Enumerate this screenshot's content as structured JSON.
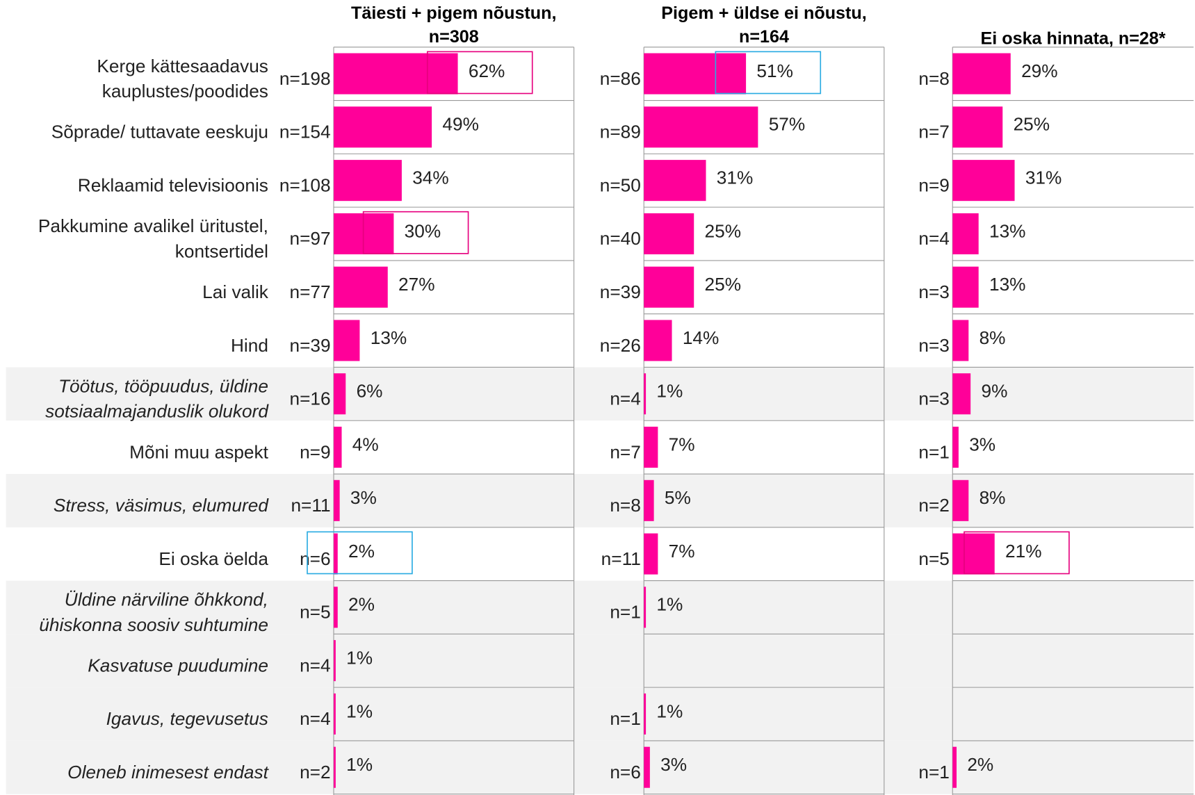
{
  "chart_data": {
    "type": "bar",
    "orientation": "horizontal",
    "categories": [
      "Kerge kättesaadavus\nkauplustes/poodides",
      "Sõprade/ tuttavate eeskuju",
      "Reklaamid televisioonis",
      "Pakkumine avalikel üritustel,\nkontsertidel",
      "Lai valik",
      "Hind",
      "Töötus, tööpuudus, üldine\nsotsiaalmajanduslik olukord",
      "Mõni muu aspekt",
      "Stress, väsimus, elumured",
      "Ei oska öelda",
      "Üldine närviline õhkkond,\nühiskonna soosiv suhtumine",
      "Kasvatuse puudumine",
      "Igavus, tegevusetus",
      "Oleneb inimesest endast"
    ],
    "category_style": [
      "normal",
      "normal",
      "normal",
      "normal",
      "normal",
      "normal",
      "italic",
      "normal",
      "italic",
      "normal",
      "italic",
      "italic",
      "italic",
      "italic"
    ],
    "xlim": [
      0,
      120
    ],
    "series": [
      {
        "name": "Täiesti + pigem nõustun,\nn=308",
        "color": "#ff0099",
        "values": [
          62,
          49,
          34,
          30,
          27,
          13,
          6,
          4,
          3,
          2,
          2,
          1,
          1,
          1
        ],
        "value_labels": [
          "62%",
          "49%",
          "34%",
          "30%",
          "27%",
          "13%",
          "6%",
          "4%",
          "3%",
          "2%",
          "2%",
          "1%",
          "1%",
          "1%"
        ],
        "count_labels": [
          "n=198",
          "n=154",
          "n=108",
          "n=97",
          "n=77",
          "n=39",
          "n=16",
          "n=9",
          "n=11",
          "n=6",
          "n=5",
          "n=4",
          "n=4",
          "n=2"
        ],
        "outline": [
          "#e6007e",
          null,
          null,
          "#e6007e",
          null,
          null,
          null,
          null,
          null,
          "#29abe2",
          null,
          null,
          null,
          null
        ]
      },
      {
        "name": "Pigem + üldse ei nõustu,\nn=164",
        "color": "#ff0099",
        "values": [
          51,
          57,
          31,
          25,
          25,
          14,
          1,
          7,
          5,
          7,
          1,
          null,
          1,
          3
        ],
        "value_labels": [
          "51%",
          "57%",
          "31%",
          "25%",
          "25%",
          "14%",
          "1%",
          "7%",
          "5%",
          "7%",
          "1%",
          null,
          "1%",
          "3%"
        ],
        "count_labels": [
          "n=86",
          "n=89",
          "n=50",
          "n=40",
          "n=39",
          "n=26",
          "n=4",
          "n=7",
          "n=8",
          "n=11",
          "n=1",
          null,
          "n=1",
          "n=6"
        ],
        "outline": [
          "#29abe2",
          null,
          null,
          null,
          null,
          null,
          null,
          null,
          null,
          null,
          null,
          null,
          null,
          null
        ]
      },
      {
        "name": "Ei oska hinnata, n=28*",
        "color": "#ff0099",
        "values": [
          29,
          25,
          31,
          13,
          13,
          8,
          9,
          3,
          8,
          21,
          null,
          null,
          null,
          2
        ],
        "value_labels": [
          "29%",
          "25%",
          "31%",
          "13%",
          "13%",
          "8%",
          "9%",
          "3%",
          "8%",
          "21%",
          null,
          null,
          null,
          "2%"
        ],
        "count_labels": [
          "n=8",
          "n=7",
          "n=9",
          "n=4",
          "n=3",
          "n=3",
          "n=3",
          "n=1",
          "n=2",
          "n=5",
          null,
          null,
          null,
          "n=1"
        ],
        "outline": [
          null,
          null,
          null,
          null,
          null,
          null,
          null,
          null,
          null,
          "#e6007e",
          null,
          null,
          null,
          null
        ]
      }
    ]
  }
}
